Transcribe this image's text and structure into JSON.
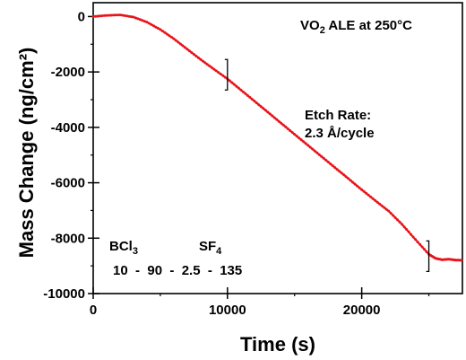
{
  "chart_data": {
    "type": "line",
    "title": "",
    "xlabel": "Time (s)",
    "ylabel": "Mass Change (ng/cm²)",
    "xlim": [
      0,
      27500
    ],
    "ylim": [
      -10000,
      500
    ],
    "x_ticks": [
      "0",
      "10000",
      "20000"
    ],
    "y_ticks": [
      "0",
      "-2000",
      "-4000",
      "-6000",
      "-8000",
      "-10000"
    ],
    "x_tick_values": [
      0,
      10000,
      20000
    ],
    "y_tick_values": [
      0,
      -2000,
      -4000,
      -6000,
      -8000,
      -10000
    ],
    "grid": false,
    "series": [
      {
        "color": "#e8141b",
        "x": [
          0,
          1000,
          2000,
          3000,
          4000,
          5000,
          6000,
          7000,
          8000,
          9000,
          10000,
          11000,
          12000,
          13000,
          14000,
          15000,
          16000,
          17000,
          18000,
          19000,
          20000,
          21000,
          22000,
          23000,
          24000,
          25000,
          25500,
          26000,
          26500,
          27000,
          27500
        ],
        "y": [
          0,
          40,
          60,
          -20,
          -200,
          -470,
          -800,
          -1180,
          -1550,
          -1900,
          -2250,
          -2650,
          -3050,
          -3450,
          -3850,
          -4250,
          -4650,
          -5050,
          -5450,
          -5850,
          -6250,
          -6640,
          -7020,
          -7500,
          -8050,
          -8580,
          -8730,
          -8780,
          -8760,
          -8790,
          -8800
        ]
      }
    ],
    "annotations": {
      "title_main": "VO",
      "title_sub": "2",
      "title_rest": " ALE at 250°C",
      "etch_line1": "Etch Rate:",
      "etch_line2": "2.3 Å/cycle",
      "bcl_main": "BCl",
      "bcl_sub": "3",
      "sf_main": "SF",
      "sf_sub": "4",
      "sequence": "10  -  90  -  2.5  -  135"
    },
    "markers": [
      {
        "label": "steady-state-start",
        "x": 10000,
        "y": -2100
      },
      {
        "label": "steady-state-end",
        "x": 25000,
        "y": -8650
      }
    ]
  }
}
